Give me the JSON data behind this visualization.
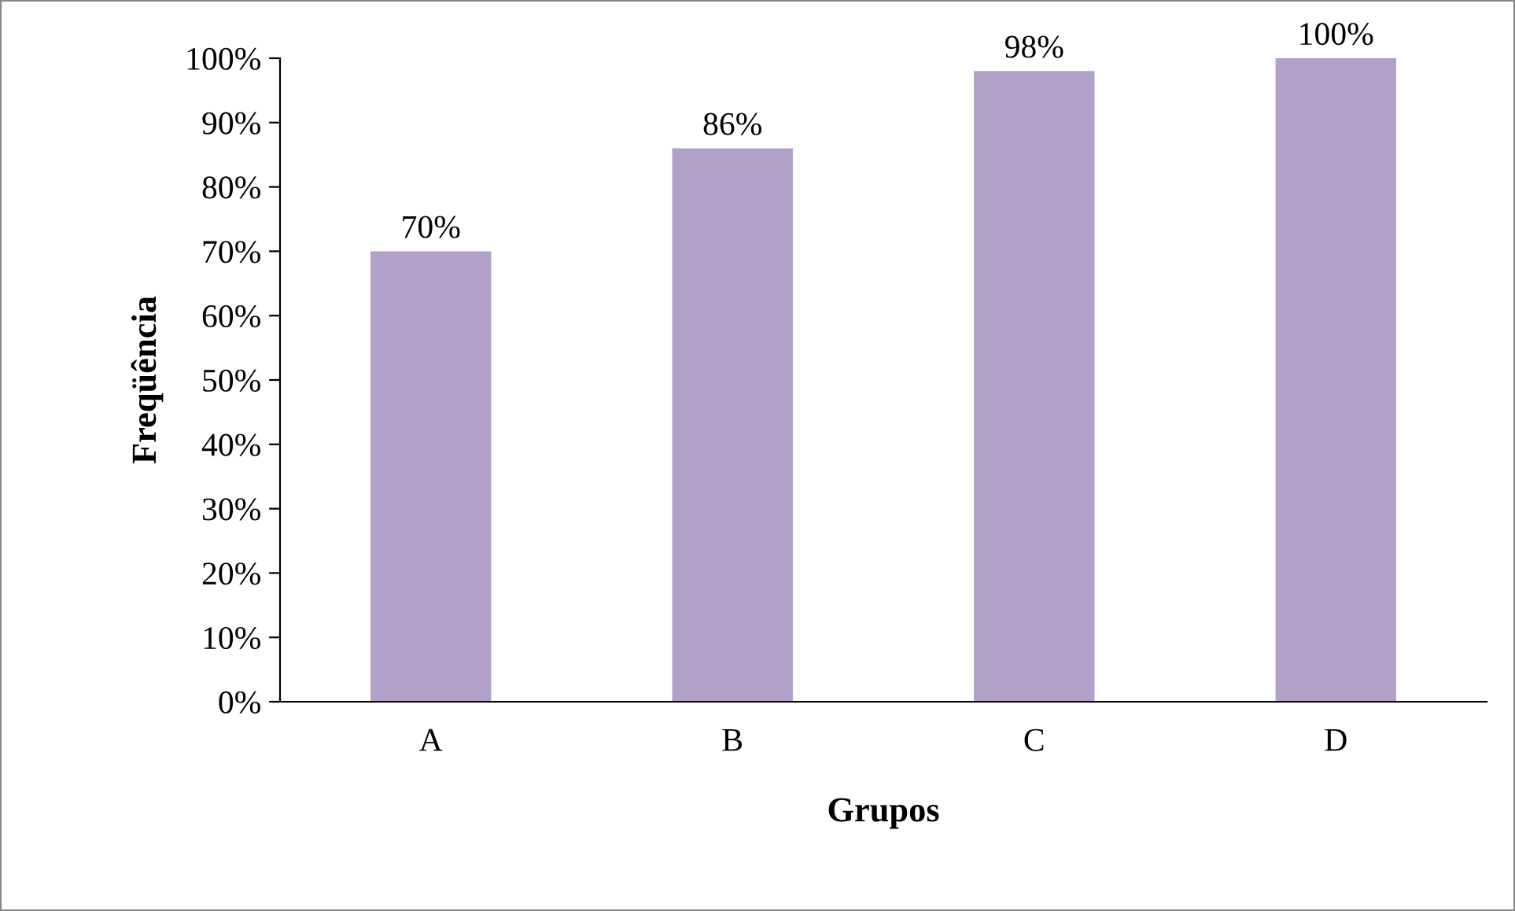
{
  "chart_data": {
    "type": "bar",
    "xlabel": "Grupos",
    "ylabel": "Freqüência",
    "categories": [
      "A",
      "B",
      "C",
      "D"
    ],
    "values": [
      70,
      86,
      98,
      100
    ],
    "value_labels": [
      "70%",
      "86%",
      "98%",
      "100%"
    ],
    "color": "#b1a0c7",
    "ylim": [
      0,
      100
    ],
    "yticks": [
      {
        "value": 0,
        "label": "0%"
      },
      {
        "value": 10,
        "label": "10%"
      },
      {
        "value": 20,
        "label": "20%"
      },
      {
        "value": 30,
        "label": "30%"
      },
      {
        "value": 40,
        "label": "40%"
      },
      {
        "value": 50,
        "label": "50%"
      },
      {
        "value": 60,
        "label": "60%"
      },
      {
        "value": 70,
        "label": "70%"
      },
      {
        "value": 80,
        "label": "80%"
      },
      {
        "value": 90,
        "label": "90%"
      },
      {
        "value": 100,
        "label": "100%"
      }
    ],
    "grid": false,
    "legend": false
  }
}
